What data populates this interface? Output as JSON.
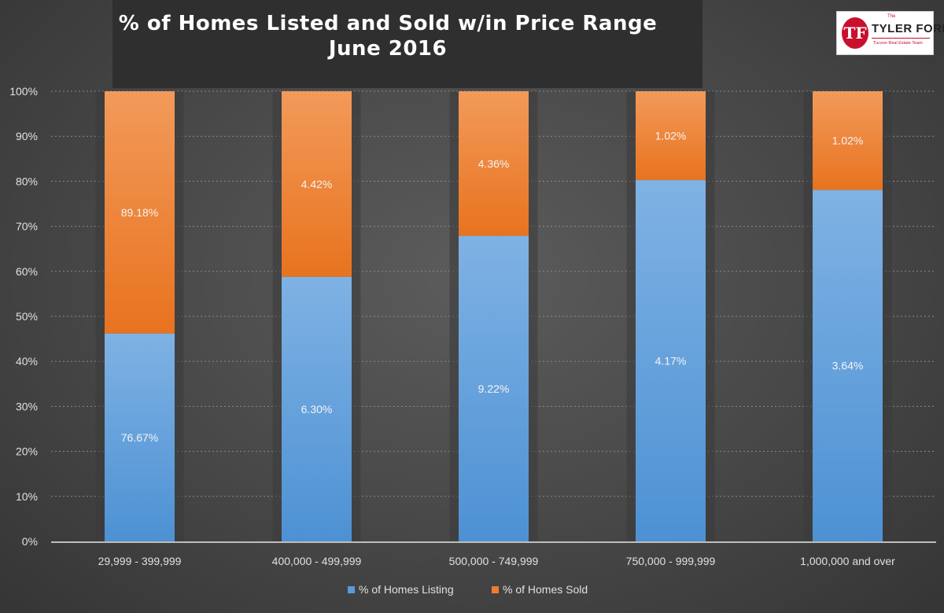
{
  "chart_data": {
    "type": "bar",
    "stacked": true,
    "title": "% of Homes Listed and Sold w/in Price Range",
    "subtitle": "June 2016",
    "categories": [
      "29,999 - 399,999",
      "400,000 - 499,999",
      "500,000 - 749,999",
      "750,000 - 999,999",
      "1,000,000 and over"
    ],
    "y_ticks": [
      "0%",
      "10%",
      "20%",
      "30%",
      "40%",
      "50%",
      "60%",
      "70%",
      "80%",
      "90%",
      "100%"
    ],
    "ylim": [
      0,
      100
    ],
    "grid": true,
    "legend_position": "bottom",
    "series": [
      {
        "name": "% of Homes Listing",
        "color": "#5b9bd5",
        "values": [
          46.2,
          58.8,
          67.9,
          80.3,
          78.1
        ],
        "labels": [
          "76.67%",
          "6.30%",
          "9.22%",
          "4.17%",
          "3.64%"
        ]
      },
      {
        "name": "% of Homes Sold",
        "color": "#ed7d31",
        "values": [
          53.8,
          41.2,
          32.1,
          19.7,
          21.9
        ],
        "labels": [
          "89.18%",
          "4.42%",
          "4.36%",
          "1.02%",
          "1.02%"
        ]
      }
    ]
  },
  "logo": {
    "the": "The",
    "name": "TYLER FORD",
    "subtitle": "Tucson Real Estate Team",
    "mark": "TF"
  }
}
